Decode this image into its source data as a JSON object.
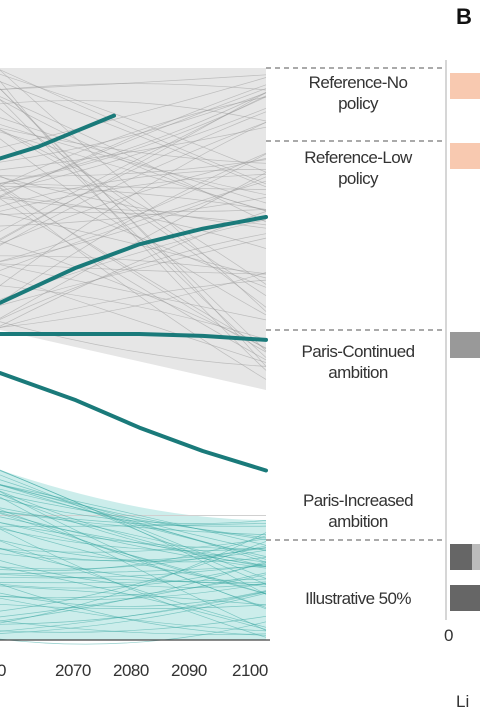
{
  "panel_letter": "B",
  "side_axis": {
    "tick": "0",
    "label_fragment": "Li"
  },
  "colors": {
    "teal": "#1a7a7a",
    "teal_light": "#8fd6d2",
    "gray_band": "#e6e6e6",
    "salmon": "#f8c9b0",
    "dark_bar": "#666666",
    "mid_bar": "#999999"
  },
  "chart_data": {
    "type": "line",
    "x_ticks": [
      "0",
      "2070",
      "2080",
      "2090",
      "2100"
    ],
    "x_visible_range": [
      2058,
      2100
    ],
    "scenarios": [
      {
        "label_lines": [
          "Reference-No",
          "policy"
        ],
        "y_end": 95
      },
      {
        "label_lines": [
          "Reference-Low",
          "policy"
        ],
        "y_end": 80
      },
      {
        "label_lines": [
          "Paris-Continued",
          "ambition"
        ],
        "y_end": 50
      },
      {
        "label_lines": [
          "Paris-Increased",
          "ambition"
        ],
        "y_end": 15
      },
      {
        "label_lines": [
          "Illustrative 50%"
        ],
        "y_end": null
      }
    ],
    "highlighted_paths": [
      {
        "x": [
          2058,
          2064,
          2070,
          2076
        ],
        "y": [
          95,
          98,
          102,
          106
        ]
      },
      {
        "x": [
          2058,
          2070,
          2080,
          2090,
          2100
        ],
        "y": [
          58,
          67,
          73,
          77,
          80
        ]
      },
      {
        "x": [
          2058,
          2070,
          2080,
          2090,
          2100
        ],
        "y": [
          50,
          50,
          50,
          49.5,
          48.5
        ]
      },
      {
        "x": [
          2058,
          2070,
          2080,
          2090,
          2100
        ],
        "y": [
          40,
          33,
          26,
          20,
          15
        ]
      }
    ],
    "side_bars": [
      {
        "color": "salmon",
        "y": 95
      },
      {
        "color": "salmon",
        "y": 80
      },
      {
        "color": "mid_bar",
        "y": 50
      },
      {
        "color": "dark_bar",
        "y": 12
      },
      {
        "color": "dark_bar",
        "y": 2
      }
    ]
  }
}
